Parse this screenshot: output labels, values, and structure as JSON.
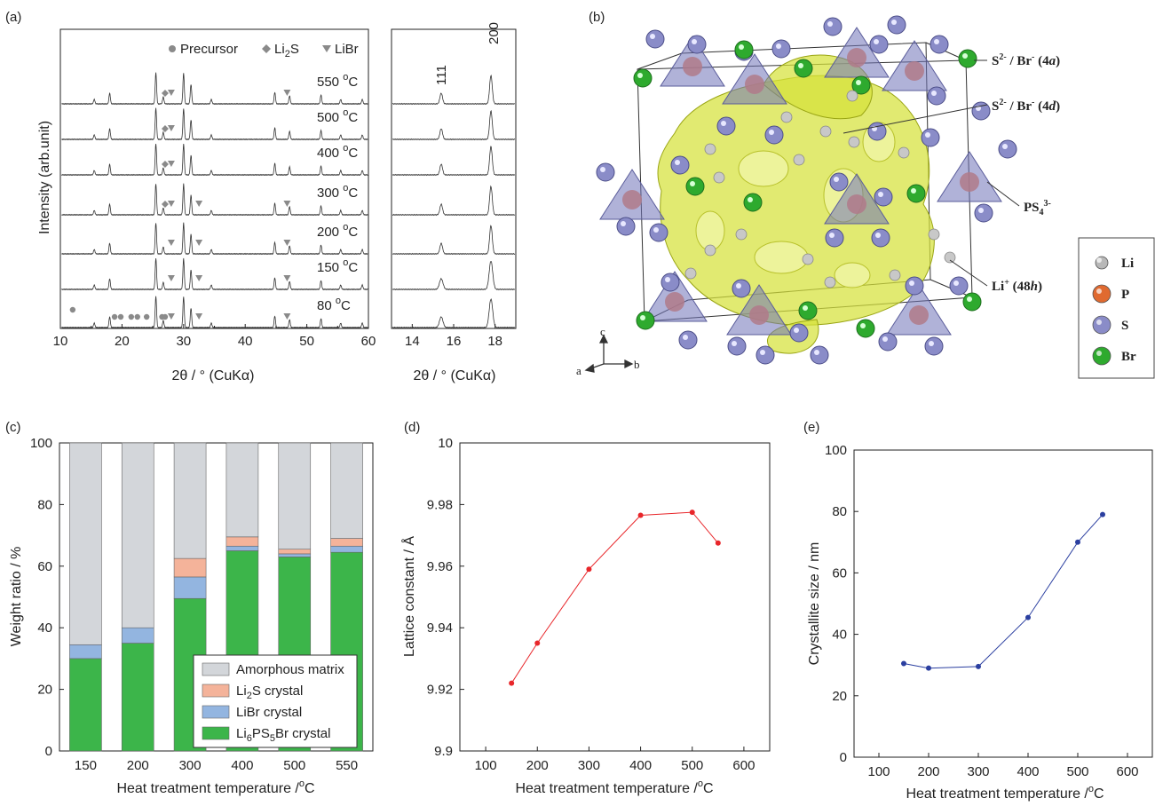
{
  "panels": {
    "a": "(a)",
    "b": "(b)",
    "c": "(c)",
    "d": "(d)",
    "e": "(e)"
  },
  "chart_data": [
    {
      "id": "a",
      "type": "line",
      "xlabel": "2θ / ° (CuKα)",
      "ylabel": "Intensity (arb.unit)",
      "xlim": [
        10,
        60
      ],
      "xticks": [
        10,
        20,
        30,
        40,
        50,
        60
      ],
      "zoom": {
        "xlim": [
          13,
          19
        ],
        "xticks": [
          14,
          16,
          18
        ],
        "xlabel": "2θ / ° (CuKα)",
        "peak_labels": [
          "111",
          "200"
        ]
      },
      "legend": [
        {
          "label": "Precursor",
          "marker": "circle"
        },
        {
          "label": "Li2S",
          "marker": "diamond"
        },
        {
          "label": "LiBr",
          "marker": "triangle-down"
        }
      ],
      "series": [
        {
          "name": "550 ºC",
          "label": "550 oC",
          "markers": {
            "Li2S": [
              27.0
            ],
            "LiBr": [
              28.0,
              46.8
            ]
          }
        },
        {
          "name": "500 ºC",
          "label": "500 oC",
          "markers": {
            "Li2S": [
              27.0
            ],
            "LiBr": [
              28.0
            ]
          }
        },
        {
          "name": "400 ºC",
          "label": "400 oC",
          "markers": {
            "Li2S": [
              27.0
            ],
            "LiBr": [
              28.0
            ]
          }
        },
        {
          "name": "300 ºC",
          "label": "300 oC",
          "markers": {
            "Li2S": [
              27.0
            ],
            "LiBr": [
              28.0,
              32.5,
              46.8
            ]
          }
        },
        {
          "name": "200 ºC",
          "label": "200 oC",
          "markers": {
            "LiBr": [
              28.0,
              32.5,
              46.8
            ]
          }
        },
        {
          "name": "150 ºC",
          "label": "150 oC",
          "markers": {
            "LiBr": [
              28.0,
              32.5,
              46.8
            ]
          }
        },
        {
          "name": "80 ºC",
          "label": "80 oC",
          "markers": {
            "Precursor": [
              12.0,
              18.8,
              19.8,
              21.5,
              22.5,
              24.0,
              26.5,
              27.0
            ],
            "LiBr": [
              28.0,
              32.5,
              46.8
            ]
          }
        }
      ]
    },
    {
      "id": "b",
      "type": "diagram",
      "site_labels": [
        {
          "ion": "S2- / Br-",
          "site": "4a"
        },
        {
          "ion": "S2- / Br-",
          "site": "4d"
        },
        {
          "ion": "PS43-",
          "site": ""
        },
        {
          "ion": "Li+",
          "site": "48h"
        }
      ],
      "axes": [
        "a",
        "b",
        "c"
      ],
      "legend": [
        {
          "label": "Li",
          "color": "#b8b8b8"
        },
        {
          "label": "P",
          "color": "#e06a30"
        },
        {
          "label": "S",
          "color": "#8a8cc8"
        },
        {
          "label": "Br",
          "color": "#2eaa2e"
        }
      ]
    },
    {
      "id": "c",
      "type": "bar",
      "stacked": true,
      "categories": [
        "150",
        "200",
        "300",
        "400",
        "500",
        "550"
      ],
      "xlabel": "Heat treatment temperature /ºC",
      "ylabel": "Weight ratio / %",
      "ylim": [
        0,
        100
      ],
      "yticks": [
        0,
        20,
        40,
        60,
        80,
        100
      ],
      "legend_position": "bottom-right",
      "series": [
        {
          "name": "Li6PS5Br crystal",
          "color": "#3cb54a",
          "values": [
            30,
            35,
            49.5,
            65,
            63,
            64.5
          ]
        },
        {
          "name": "LiBr crystal",
          "color": "#93b5e0",
          "values": [
            4.5,
            5,
            7,
            1.5,
            1,
            2
          ]
        },
        {
          "name": "Li2S crystal",
          "color": "#f4b39a",
          "values": [
            0,
            0,
            6,
            3,
            1.5,
            2.5
          ]
        },
        {
          "name": "Amorphous matrix",
          "color": "#d3d6da",
          "values": [
            65.5,
            60,
            37.5,
            30.5,
            34.5,
            31
          ]
        }
      ]
    },
    {
      "id": "d",
      "type": "line",
      "xlabel": "Heat treatment temperature /ºC",
      "ylabel": "Lattice constant / Å",
      "xlim": [
        50,
        650
      ],
      "ylim": [
        9.9,
        10
      ],
      "xticks": [
        100,
        200,
        300,
        400,
        500,
        600
      ],
      "yticks": [
        9.9,
        9.92,
        9.94,
        9.96,
        9.98,
        10
      ],
      "color": "#e8262a",
      "series": [
        {
          "x": [
            150,
            200,
            300,
            400,
            500,
            550
          ],
          "y": [
            9.922,
            9.935,
            9.959,
            9.9765,
            9.9775,
            9.9675
          ]
        }
      ]
    },
    {
      "id": "e",
      "type": "line",
      "xlabel": "Heat treatment temperature /ºC",
      "ylabel": "Crystallite size / nm",
      "xlim": [
        50,
        650
      ],
      "ylim": [
        0,
        100
      ],
      "xticks": [
        100,
        200,
        300,
        400,
        500,
        600
      ],
      "yticks": [
        0,
        20,
        40,
        60,
        80,
        100
      ],
      "color": "#2b3fa0",
      "series": [
        {
          "x": [
            150,
            200,
            300,
            400,
            500,
            550
          ],
          "y": [
            30.5,
            29,
            29.5,
            45.5,
            70,
            79
          ]
        }
      ]
    }
  ]
}
